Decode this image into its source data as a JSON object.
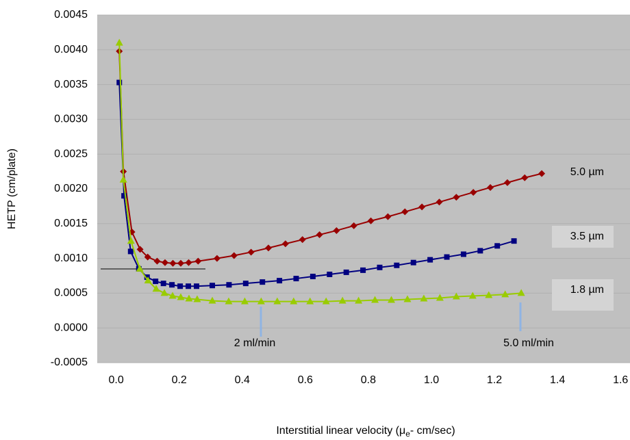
{
  "chart_data": {
    "type": "line",
    "y_label": "HETP (cm/plate)",
    "x_label": [
      "Interstitial linear velocity (μ",
      "e",
      "- cm/sec)"
    ],
    "xlim": [
      -0.06,
      1.63
    ],
    "xticks": [
      {
        "value": 0,
        "label": "0.0"
      },
      0.2,
      0.4,
      0.6,
      0.8,
      {
        "value": 1,
        "label": "1.0"
      },
      1.2,
      1.4,
      1.6
    ],
    "ylim": [
      -0.0005,
      0.0045
    ],
    "yticks": [
      {
        "value": -0.0005,
        "label": "-0.0005"
      },
      {
        "value": 0,
        "label": "0.0000"
      },
      {
        "value": 0.0005,
        "label": "0.0005"
      },
      {
        "value": 0.001,
        "label": "0.0010"
      },
      {
        "value": 0.0015,
        "label": "0.0015"
      },
      {
        "value": 0.002,
        "label": "0.0020"
      },
      {
        "value": 0.0025,
        "label": "0.0025"
      },
      {
        "value": 0.003,
        "label": "0.0030"
      },
      {
        "value": 0.0035,
        "label": "0.0035"
      },
      {
        "value": 0.004,
        "label": "0.0040"
      },
      {
        "value": 0.0045,
        "label": "0.0045"
      }
    ],
    "grid": true,
    "series": [
      {
        "name": "5.0 µm",
        "color": "#990000",
        "marker": "diamond",
        "x": [
          0.01,
          0.023,
          0.05,
          0.076,
          0.1,
          0.13,
          0.155,
          0.18,
          0.205,
          0.23,
          0.26,
          0.32,
          0.374,
          0.428,
          0.483,
          0.537,
          0.591,
          0.645,
          0.699,
          0.754,
          0.808,
          0.862,
          0.916,
          0.97,
          1.025,
          1.079,
          1.133,
          1.187,
          1.241,
          1.296,
          1.35
        ],
        "values": [
          0.00398,
          0.00225,
          0.00138,
          0.00113,
          0.00102,
          0.00096,
          0.00094,
          0.00093,
          0.00093,
          0.00094,
          0.00096,
          0.001,
          0.00104,
          0.00109,
          0.00115,
          0.00121,
          0.00127,
          0.00134,
          0.0014,
          0.00147,
          0.00154,
          0.0016,
          0.00167,
          0.00174,
          0.00181,
          0.00188,
          0.00195,
          0.00202,
          0.00209,
          0.00216,
          0.00222
        ]
      },
      {
        "name": "3.5 µm",
        "color": "#000080",
        "marker": "square",
        "x": [
          0.01,
          0.025,
          0.046,
          0.072,
          0.098,
          0.125,
          0.15,
          0.177,
          0.203,
          0.229,
          0.255,
          0.305,
          0.358,
          0.411,
          0.464,
          0.518,
          0.571,
          0.624,
          0.677,
          0.73,
          0.783,
          0.836,
          0.89,
          0.943,
          0.996,
          1.049,
          1.102,
          1.155,
          1.209,
          1.262
        ],
        "values": [
          0.00353,
          0.0019,
          0.0011,
          0.00085,
          0.00073,
          0.00067,
          0.00064,
          0.00062,
          0.0006,
          0.0006,
          0.0006,
          0.00061,
          0.00062,
          0.00064,
          0.00066,
          0.00068,
          0.00071,
          0.00074,
          0.00077,
          0.0008,
          0.00083,
          0.00087,
          0.0009,
          0.00094,
          0.00098,
          0.00102,
          0.00106,
          0.00111,
          0.00118,
          0.00125
        ]
      },
      {
        "name": "1.8 µm",
        "color": "#99cc00",
        "marker": "triangle",
        "x": [
          0.01,
          0.023,
          0.047,
          0.075,
          0.101,
          0.127,
          0.153,
          0.179,
          0.205,
          0.231,
          0.257,
          0.305,
          0.357,
          0.408,
          0.46,
          0.511,
          0.563,
          0.615,
          0.666,
          0.718,
          0.769,
          0.821,
          0.873,
          0.924,
          0.976,
          1.027,
          1.079,
          1.131,
          1.182,
          1.234,
          1.285
        ],
        "values": [
          0.0041,
          0.00213,
          0.00125,
          0.00085,
          0.00068,
          0.00056,
          0.0005,
          0.00046,
          0.00044,
          0.00042,
          0.00041,
          0.00039,
          0.00038,
          0.00038,
          0.00038,
          0.00038,
          0.00038,
          0.00038,
          0.00038,
          0.00039,
          0.00039,
          0.0004,
          0.0004,
          0.00041,
          0.00042,
          0.00043,
          0.00045,
          0.00046,
          0.00047,
          0.00048,
          0.0005
        ]
      }
    ],
    "annotations": [
      "2 ml/min",
      "5.0 ml/min"
    ]
  }
}
